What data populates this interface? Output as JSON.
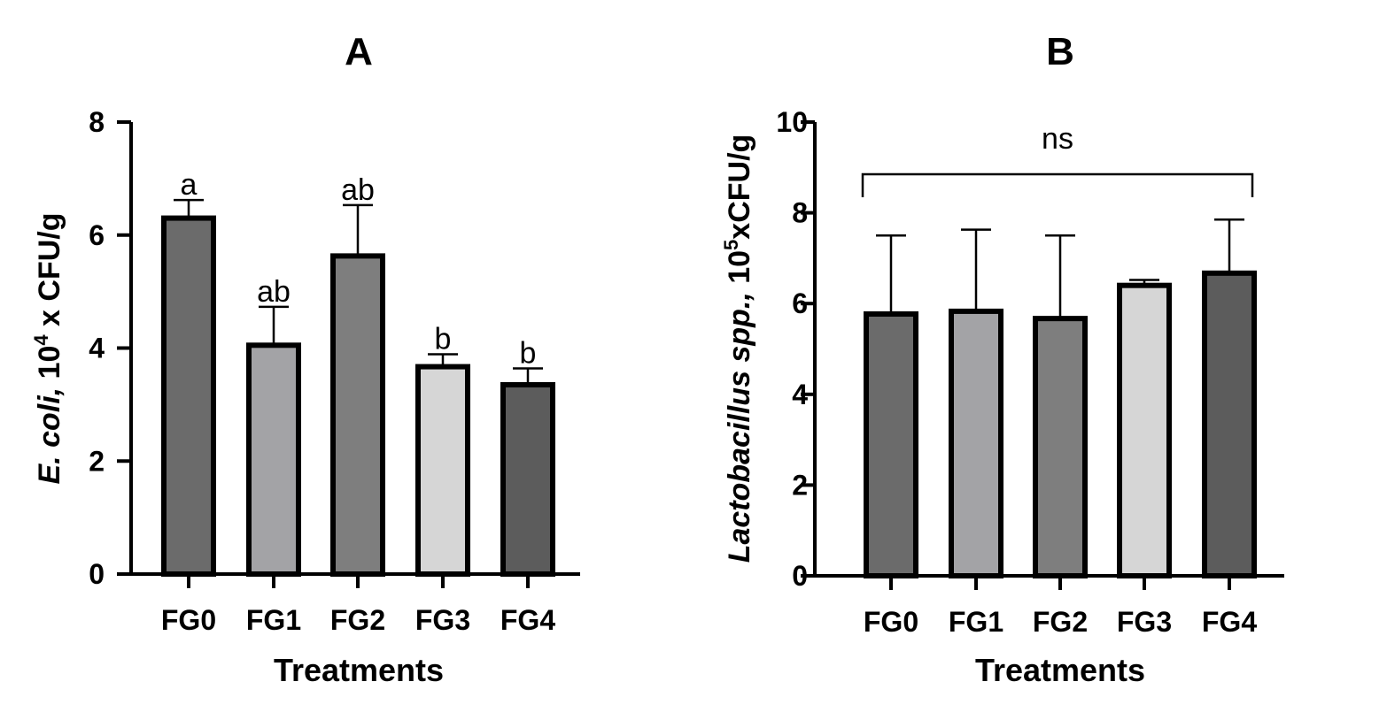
{
  "chart_data": [
    {
      "type": "bar",
      "title": "A",
      "xlabel": "Treatments",
      "ylabel_parts": {
        "italic": "E. coli,",
        "base": " 10",
        "exponent": "4",
        "rest": " x CFU/g"
      },
      "ylim": [
        0,
        8
      ],
      "yticks": [
        "0",
        "2",
        "4",
        "6",
        "8"
      ],
      "categories": [
        "FG0",
        "FG1",
        "FG2",
        "FG3",
        "FG4"
      ],
      "values": [
        6.3,
        4.05,
        5.63,
        3.67,
        3.35
      ],
      "errors": [
        0.32,
        0.68,
        0.9,
        0.22,
        0.29
      ],
      "significance_letters": [
        "a",
        "ab",
        "ab",
        "b",
        "b"
      ],
      "bar_colors": [
        "#6b6b6b",
        "#a3a3a6",
        "#7e7e7e",
        "#d6d6d6",
        "#5c5c5c"
      ],
      "grid": false,
      "legend": "none"
    },
    {
      "type": "bar",
      "title": "B",
      "xlabel": "Treatments",
      "ylabel_parts": {
        "italic": "Lactobacillus spp.,",
        "base": " 10",
        "exponent": "5",
        "rest": "xCFU/g"
      },
      "ylim": [
        0,
        10
      ],
      "yticks": [
        "0",
        "2",
        "4",
        "6",
        "8",
        "10"
      ],
      "categories": [
        "FG0",
        "FG1",
        "FG2",
        "FG3",
        "FG4"
      ],
      "values": [
        5.77,
        5.83,
        5.67,
        6.4,
        6.67
      ],
      "errors": [
        1.73,
        1.8,
        1.83,
        0.12,
        1.18
      ],
      "bracket_label": "ns",
      "bar_colors": [
        "#6b6b6b",
        "#a3a3a6",
        "#7e7e7e",
        "#d6d6d6",
        "#5c5c5c"
      ],
      "grid": false,
      "legend": "none"
    }
  ]
}
